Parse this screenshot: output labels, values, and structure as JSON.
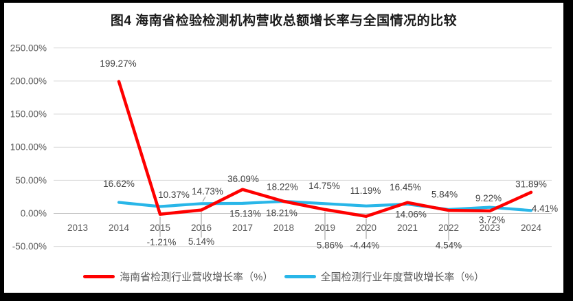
{
  "title": "图4 海南省检验检测机构营收总额增长率与全国情况的比较",
  "chart_data": {
    "type": "line",
    "title": "图4 海南省检验检测机构营收总额增长率与全国情况的比较",
    "categories": [
      "2013",
      "2014",
      "2015",
      "2016",
      "2017",
      "2018",
      "2019",
      "2020",
      "2021",
      "2022",
      "2023",
      "2024"
    ],
    "series": [
      {
        "name": "海南省检测行业营收增长率（%）",
        "color": "#fe0000",
        "values": [
          null,
          199.27,
          -1.21,
          5.14,
          36.09,
          18.21,
          5.86,
          -4.44,
          16.45,
          4.54,
          3.72,
          31.89
        ],
        "labels": [
          "",
          "199.27%",
          "-1.21%",
          "5.14%",
          "36.09%",
          "18.21%",
          "5.86%",
          "-4.44%",
          "16.45%",
          "4.54%",
          "3.72%",
          "31.89%"
        ],
        "label_offsets": [
          null,
          [
            -1,
            -26
          ],
          [
            2,
            41
          ],
          [
            0,
            46
          ],
          [
            1,
            -15
          ],
          [
            -3,
            17
          ],
          [
            7,
            52
          ],
          [
            -2,
            42
          ],
          [
            -3,
            -22
          ],
          [
            0,
            51
          ],
          [
            3,
            13
          ],
          [
            0,
            -12
          ]
        ],
        "leaders": [
          null,
          null,
          [
            0,
            4,
            0,
            33
          ],
          [
            0,
            3,
            0,
            40
          ],
          null,
          null,
          [
            0,
            3,
            0,
            44
          ],
          [
            0,
            3,
            0,
            33
          ],
          null,
          [
            0,
            3,
            0,
            44
          ],
          null,
          null
        ]
      },
      {
        "name": "全国检测行业年度营收增长率（%）",
        "color": "#29b6e8",
        "values": [
          null,
          16.62,
          10.37,
          14.73,
          15.13,
          18.22,
          14.75,
          11.19,
          14.06,
          5.84,
          9.22,
          4.41
        ],
        "labels": [
          "",
          "16.62%",
          "10.37%",
          "14.73%",
          "15.13%",
          "18.22%",
          "14.75%",
          "11.19%",
          "14.06%",
          "5.84%",
          "9.22%",
          "4.41%"
        ],
        "label_offsets": [
          null,
          [
            0,
            -27
          ],
          [
            20,
            -17
          ],
          [
            9,
            -18
          ],
          [
            4,
            15
          ],
          [
            -2,
            -21
          ],
          [
            -1,
            -26
          ],
          [
            -1,
            -22
          ],
          [
            5,
            15
          ],
          [
            -6,
            -22
          ],
          [
            -2,
            -13
          ],
          [
            20,
            -3
          ]
        ],
        "leaders": [
          null,
          null,
          null,
          [
            2,
            -3,
            6,
            -10
          ],
          null,
          null,
          null,
          null,
          null,
          null,
          null,
          null
        ]
      }
    ],
    "y_axis": {
      "ticks": [
        "250.00%",
        "200.00%",
        "150.00%",
        "100.00%",
        "50.00%",
        "0.00%",
        "-50.00%"
      ],
      "max": 250,
      "min": -50,
      "step": 50
    },
    "grid": true,
    "legend_position": "bottom",
    "colors": {
      "gridline": "#d9d9d9",
      "zero_line": "#bfbfbf",
      "axis_text": "#595959",
      "data_label_text": "#404040",
      "leader_line": "#a6a6a6",
      "frame": "#000000"
    }
  }
}
